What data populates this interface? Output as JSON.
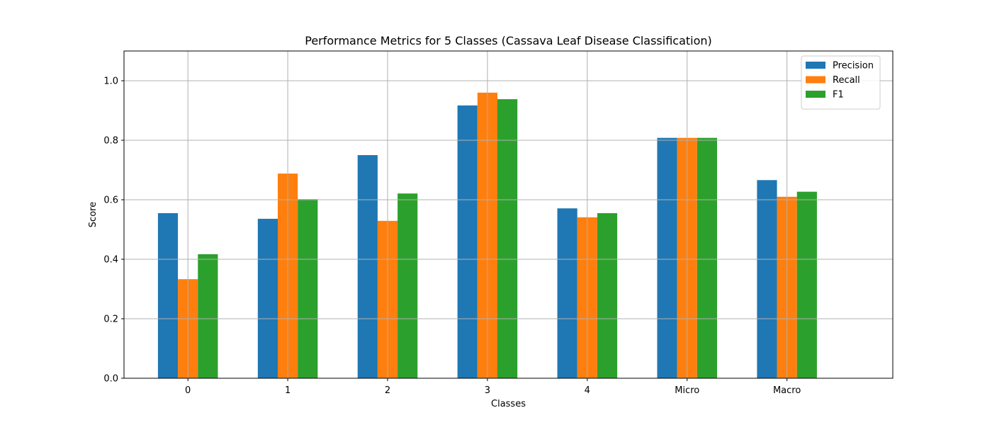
{
  "chart_data": {
    "type": "bar",
    "title": "Performance Metrics for 5 Classes (Cassava Leaf Disease Classification)",
    "xlabel": "Classes",
    "ylabel": "Score",
    "categories": [
      "0",
      "1",
      "2",
      "3",
      "4",
      "Micro",
      "Macro"
    ],
    "series": [
      {
        "name": "Precision",
        "color": "#1f77b4",
        "values": [
          0.555,
          0.536,
          0.75,
          0.917,
          0.571,
          0.808,
          0.666
        ]
      },
      {
        "name": "Recall",
        "color": "#ff7f0e",
        "values": [
          0.333,
          0.688,
          0.529,
          0.96,
          0.541,
          0.808,
          0.61
        ]
      },
      {
        "name": "F1",
        "color": "#2ca02c",
        "values": [
          0.417,
          0.602,
          0.621,
          0.938,
          0.555,
          0.808,
          0.627
        ]
      }
    ],
    "ylim": [
      0,
      1.1
    ],
    "yticks": [
      0.0,
      0.2,
      0.4,
      0.6,
      0.8,
      1.0
    ],
    "ytick_labels": [
      "0.0",
      "0.2",
      "0.4",
      "0.6",
      "0.8",
      "1.0"
    ],
    "grid": true,
    "legend_position": "top-right"
  }
}
